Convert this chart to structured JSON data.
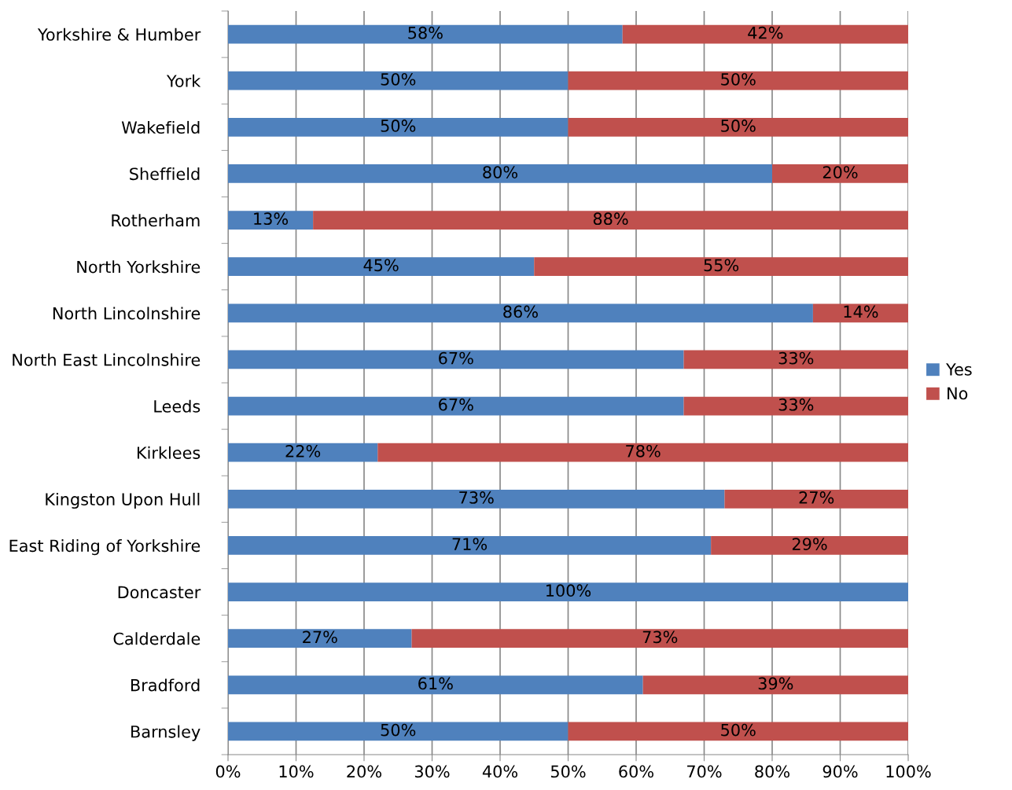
{
  "chart_data": {
    "type": "bar",
    "orientation": "horizontal",
    "stacked": true,
    "categories": [
      "Yorkshire & Humber",
      "York",
      "Wakefield",
      "Sheffield",
      "Rotherham",
      "North Yorkshire",
      "North Lincolnshire",
      "North East Lincolnshire",
      "Leeds",
      "Kirklees",
      "Kingston Upon Hull",
      "East Riding of Yorkshire",
      "Doncaster",
      "Calderdale",
      "Bradford",
      "Barnsley"
    ],
    "series": [
      {
        "name": "Yes",
        "color": "#4f81bd",
        "values": [
          58,
          50,
          50,
          80,
          12.5,
          45,
          86,
          67,
          67,
          22,
          73,
          71,
          100,
          27,
          61,
          50
        ],
        "value_labels": [
          "58%",
          "50%",
          "50%",
          "80%",
          "13%",
          "45%",
          "86%",
          "67%",
          "67%",
          "22%",
          "73%",
          "71%",
          "100%",
          "27%",
          "61%",
          "50%"
        ]
      },
      {
        "name": "No",
        "color": "#c0504d",
        "values": [
          42,
          50,
          50,
          20,
          87.5,
          55,
          14,
          33,
          33,
          78,
          27,
          29,
          0,
          73,
          39,
          50
        ],
        "value_labels": [
          "42%",
          "50%",
          "50%",
          "20%",
          "88%",
          "55%",
          "14%",
          "33%",
          "33%",
          "78%",
          "27%",
          "29%",
          null,
          "73%",
          "39%",
          "50%"
        ]
      }
    ],
    "xlim": [
      0,
      100
    ],
    "xticks": [
      {
        "value": 0,
        "label": "0%"
      },
      {
        "value": 10,
        "label": "10%"
      },
      {
        "value": 20,
        "label": "20%"
      },
      {
        "value": 30,
        "label": "30%"
      },
      {
        "value": 40,
        "label": "40%"
      },
      {
        "value": 50,
        "label": "50%"
      },
      {
        "value": 60,
        "label": "60%"
      },
      {
        "value": 70,
        "label": "70%"
      },
      {
        "value": 80,
        "label": "80%"
      },
      {
        "value": 90,
        "label": "90%"
      },
      {
        "value": 100,
        "label": "100%"
      }
    ],
    "grid": "x",
    "legend": "right"
  }
}
